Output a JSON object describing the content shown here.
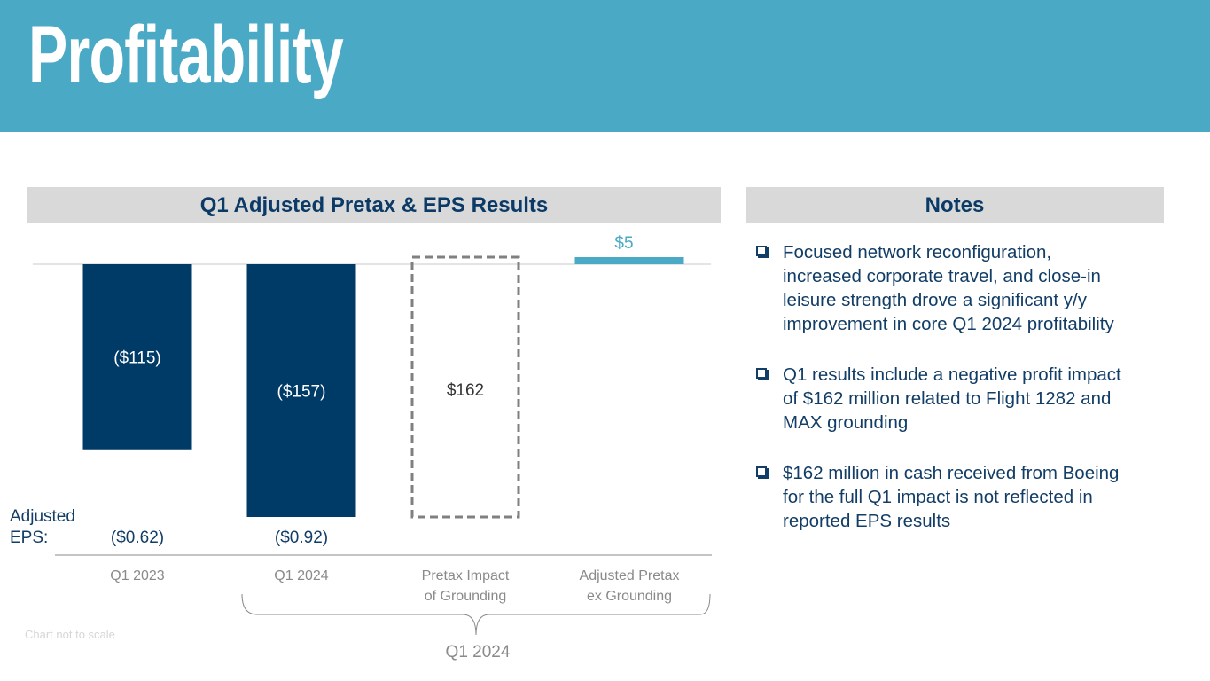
{
  "page": {
    "title": "Profitability",
    "chart_panel_title": "Q1 Adjusted Pretax & EPS Results",
    "notes_panel_title": "Notes",
    "footnote": "Chart not to scale",
    "eps_label_line1": "Adjusted",
    "eps_label_line2": "EPS:",
    "bracket_label": "Q1 2024"
  },
  "colors": {
    "header_bg": "#4aaac6",
    "bar_dark": "#003a66",
    "bar_light": "#4aaac6",
    "dashed": "#808080",
    "panel_bg": "#d9d9d9",
    "text_dark": "#0b3a66"
  },
  "chart_data": {
    "type": "bar",
    "title": "Q1 Adjusted Pretax & EPS Results",
    "units": "$ millions",
    "categories": [
      "Q1 2023",
      "Q1 2024",
      "Pretax Impact of Grounding",
      "Adjusted Pretax ex Grounding"
    ],
    "category_lines": [
      [
        "Q1 2023"
      ],
      [
        "Q1 2024"
      ],
      [
        "Pretax Impact",
        "of Grounding"
      ],
      [
        "Adjusted Pretax",
        "ex Grounding"
      ]
    ],
    "values": [
      -115,
      -157,
      162,
      5
    ],
    "value_labels": [
      "($115)",
      "($157)",
      "$162",
      "$5"
    ],
    "styles": [
      "solid-dark",
      "solid-dark",
      "dashed",
      "solid-light"
    ],
    "eps_values": [
      "($0.62)",
      "($0.92)",
      "",
      ""
    ],
    "note": "Chart not to scale"
  },
  "notes": [
    {
      "lines": [
        "Focused network reconfiguration,",
        "increased corporate travel, and close-in",
        "leisure strength drove a significant y/y",
        "improvement in core Q1 2024 profitability"
      ]
    },
    {
      "lines": [
        "Q1 results include a negative profit impact",
        "of $162 million related to Flight 1282 and",
        "MAX grounding"
      ]
    },
    {
      "lines": [
        "$162 million in cash received from Boeing",
        "for the full Q1 impact is not reflected in",
        "reported EPS results"
      ]
    }
  ]
}
